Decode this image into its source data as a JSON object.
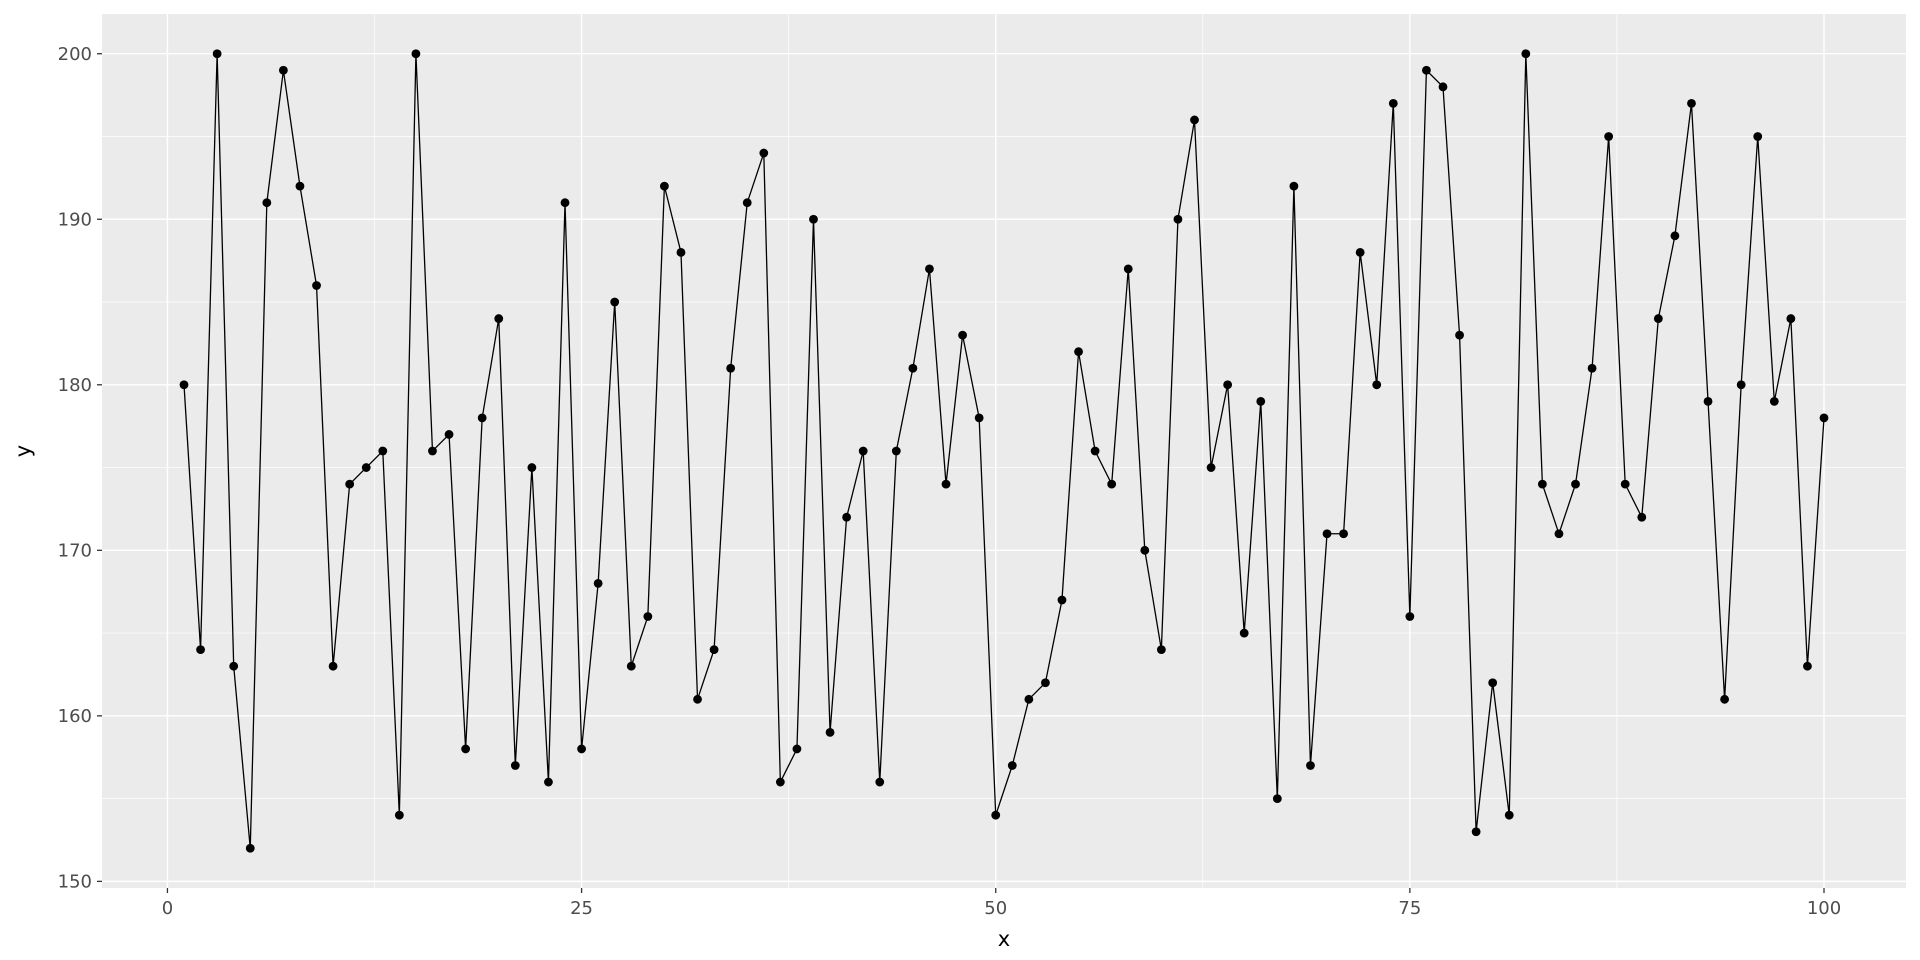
{
  "chart_data": {
    "type": "line",
    "title": "",
    "xlabel": "x",
    "ylabel": "y",
    "x_ticks": [
      0,
      25,
      50,
      75,
      100
    ],
    "y_ticks": [
      150,
      160,
      170,
      180,
      190,
      200
    ],
    "x_minor_ticks": [
      12.5,
      37.5,
      62.5,
      87.5
    ],
    "y_minor_ticks": [
      155,
      165,
      175,
      185,
      195
    ],
    "xlim_shown": [
      0,
      100
    ],
    "ylim_shown": [
      150,
      200
    ],
    "grid": "on",
    "legend": "none",
    "style": {
      "panel_background": "#EBEBEB",
      "grid_color": "#FFFFFF",
      "line_color": "#000000",
      "point_color": "#000000",
      "tick_label_color": "#4D4D4D",
      "axis_title_color": "#000000",
      "plot_background": "#FFFFFF"
    },
    "x": [
      1,
      2,
      3,
      4,
      5,
      6,
      7,
      8,
      9,
      10,
      11,
      12,
      13,
      14,
      15,
      16,
      17,
      18,
      19,
      20,
      21,
      22,
      23,
      24,
      25,
      26,
      27,
      28,
      29,
      30,
      31,
      32,
      33,
      34,
      35,
      36,
      37,
      38,
      39,
      40,
      41,
      42,
      43,
      44,
      45,
      46,
      47,
      48,
      49,
      50,
      51,
      52,
      53,
      54,
      55,
      56,
      57,
      58,
      59,
      60,
      61,
      62,
      63,
      64,
      65,
      66,
      67,
      68,
      69,
      70,
      71,
      72,
      73,
      74,
      75,
      76,
      77,
      78,
      79,
      80,
      81,
      82,
      83,
      84,
      85,
      86,
      87,
      88,
      89,
      90,
      91,
      92,
      93,
      94,
      95,
      96,
      97,
      98,
      99,
      100
    ],
    "y": [
      180,
      164,
      200,
      163,
      152,
      191,
      199,
      192,
      186,
      163,
      174,
      175,
      176,
      154,
      200,
      176,
      177,
      158,
      178,
      184,
      157,
      175,
      156,
      191,
      158,
      168,
      185,
      163,
      166,
      192,
      188,
      161,
      164,
      181,
      191,
      194,
      156,
      158,
      190,
      159,
      172,
      176,
      156,
      176,
      181,
      187,
      174,
      183,
      178,
      154,
      157,
      161,
      162,
      167,
      182,
      176,
      174,
      187,
      170,
      164,
      190,
      196,
      175,
      180,
      165,
      179,
      155,
      192,
      157,
      171,
      171,
      188,
      180,
      197,
      166,
      199,
      198,
      183,
      153,
      162,
      154,
      200,
      174,
      171,
      174,
      181,
      195,
      174,
      172,
      184,
      189,
      197,
      179,
      161,
      180,
      195,
      179,
      184,
      163,
      178
    ]
  }
}
